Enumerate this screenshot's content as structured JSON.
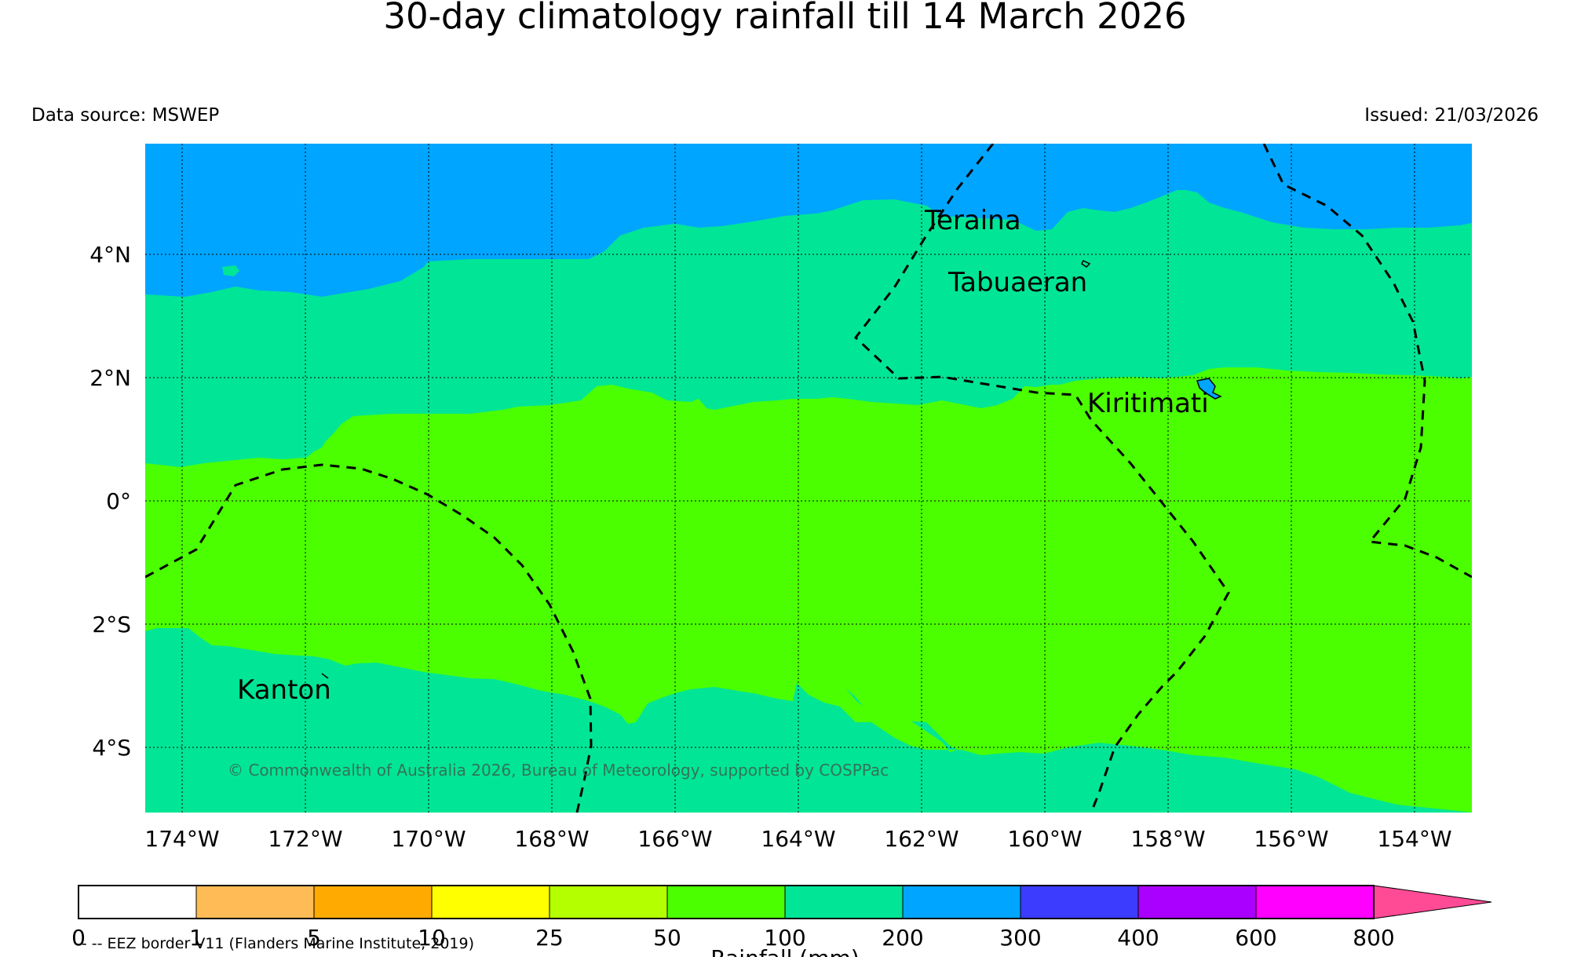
{
  "title": "30-day climatology rainfall till 14 March 2026",
  "data_source": "Data source: MSWEP",
  "issued": "Issued: 21/03/2026",
  "copyright": "© Commonwealth of Australia 2026, Bureau of Meteorology, supported by COSPPac",
  "eez_legend": "-- -- EEZ border V11 (Flanders Marine Institute, 2019)",
  "map": {
    "lon_labels": [
      "174°W",
      "172°W",
      "170°W",
      "168°W",
      "166°W",
      "164°W",
      "162°W",
      "160°W",
      "158°W",
      "156°W",
      "154°W"
    ],
    "lat_labels": [
      "4°N",
      "2°N",
      "0°",
      "2°S",
      "4°S"
    ],
    "places": [
      {
        "name": "Teraina"
      },
      {
        "name": "Tabuaeran"
      },
      {
        "name": "Kiritimati"
      },
      {
        "name": "Kanton"
      }
    ]
  },
  "colorbar": {
    "label": "Rainfall (mm)",
    "ticks": [
      "0",
      "1",
      "5",
      "10",
      "25",
      "50",
      "100",
      "200",
      "300",
      "400",
      "600",
      "800"
    ],
    "colors": [
      "#ffffff",
      "#ffbb55",
      "#ffaa00",
      "#ffff00",
      "#b4ff00",
      "#4bff00",
      "#00e696",
      "#00a5ff",
      "#3c3cff",
      "#aa00ff",
      "#ff00ff",
      "#ff4b96"
    ]
  },
  "colors": {
    "band_100_200": "#00e696",
    "band_200_300": "#00a5ff",
    "band_50_100": "#4bff00"
  }
}
